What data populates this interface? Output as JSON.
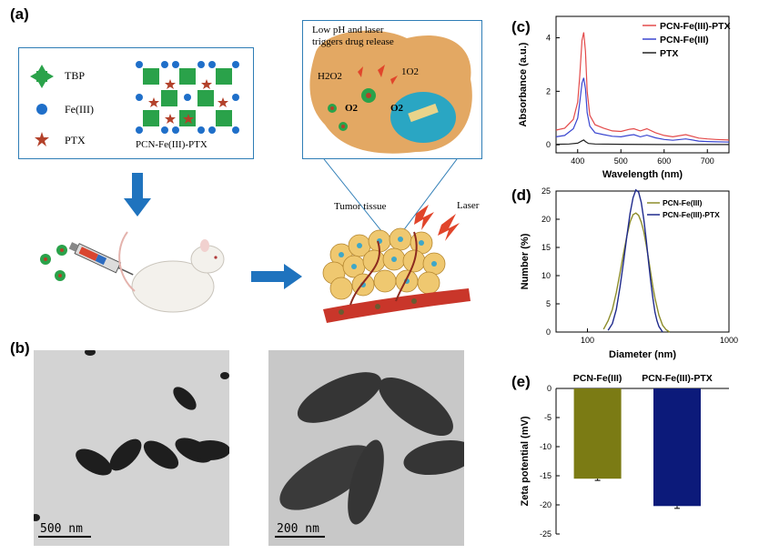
{
  "panels": {
    "a": {
      "label": "(a)"
    },
    "b": {
      "label": "(b)"
    },
    "c": {
      "label": "(c)"
    },
    "d": {
      "label": "(d)"
    },
    "e": {
      "label": "(e)"
    }
  },
  "schematic": {
    "legend": {
      "tbp": "TBP",
      "fe": "Fe(III)",
      "ptx": "PTX"
    },
    "mof_label": "PCN-Fe(III)-PTX",
    "release_title_line1": "Low pH and laser",
    "release_title_line2": "triggers drug release",
    "h2o2": "H2O2",
    "singlet_o2": "1O2",
    "o2_left": "O2",
    "o2_right": "O2",
    "tumor_tissue": "Tumor tissue",
    "laser": "Laser"
  },
  "tem": {
    "left_scale": "500 nm",
    "right_scale": "200 nm"
  },
  "colors": {
    "blue_arrow": "#1f73be",
    "box_border": "#2e7db6",
    "pcn_fe_ptx": "#e34a4a",
    "pcn_fe": "#3a46d0",
    "ptx": "#222222",
    "d_pcn_fe": "#8c8c2a",
    "d_pcn_fe_ptx": "#1f2a8c",
    "bar_olive": "#7b7b14",
    "bar_navy": "#0c1a7a"
  },
  "chart_data": [
    {
      "panel": "c",
      "type": "line",
      "xlabel": "Wavelength (nm)",
      "ylabel": "Absorbance (a.u.)",
      "xlim": [
        350,
        750
      ],
      "ylim": [
        -0.3,
        4.8
      ],
      "xticks": [
        400,
        500,
        600,
        700
      ],
      "yticks": [
        0,
        2,
        4
      ],
      "legend_placement": "top-right",
      "series": [
        {
          "name": "PCN-Fe(III)-PTX",
          "x": [
            350,
            370,
            390,
            400,
            405,
            410,
            414,
            418,
            422,
            428,
            440,
            460,
            480,
            500,
            520,
            530,
            545,
            560,
            580,
            600,
            620,
            650,
            680,
            700,
            720,
            750
          ],
          "values": [
            0.55,
            0.62,
            0.95,
            1.6,
            2.6,
            3.9,
            4.2,
            3.5,
            2.0,
            1.1,
            0.75,
            0.62,
            0.52,
            0.5,
            0.58,
            0.6,
            0.52,
            0.6,
            0.45,
            0.35,
            0.3,
            0.38,
            0.25,
            0.22,
            0.2,
            0.18
          ]
        },
        {
          "name": "PCN-Fe(III)",
          "x": [
            350,
            370,
            390,
            400,
            405,
            410,
            414,
            418,
            422,
            428,
            440,
            460,
            480,
            500,
            520,
            530,
            545,
            560,
            580,
            600,
            620,
            650,
            680,
            700,
            720,
            750
          ],
          "values": [
            0.3,
            0.35,
            0.6,
            1.0,
            1.6,
            2.3,
            2.5,
            2.1,
            1.2,
            0.7,
            0.45,
            0.38,
            0.32,
            0.3,
            0.36,
            0.38,
            0.3,
            0.36,
            0.26,
            0.2,
            0.17,
            0.22,
            0.14,
            0.12,
            0.11,
            0.1
          ]
        },
        {
          "name": "PTX",
          "x": [
            350,
            380,
            400,
            410,
            414,
            418,
            425,
            440,
            500,
            600,
            700,
            750
          ],
          "values": [
            0.02,
            0.03,
            0.06,
            0.15,
            0.18,
            0.12,
            0.05,
            0.03,
            0.02,
            0.01,
            0.01,
            0.01
          ]
        }
      ]
    },
    {
      "panel": "d",
      "type": "line",
      "xlabel": "Diameter (nm)",
      "ylabel": "Number (%)",
      "xscale": "log",
      "xlim": [
        60,
        1000
      ],
      "ylim": [
        0,
        25
      ],
      "xticks": [
        100,
        1000
      ],
      "yticks": [
        0,
        5,
        10,
        15,
        20,
        25
      ],
      "legend_placement": "top-right",
      "series": [
        {
          "name": "PCN-Fe(III)",
          "x": [
            130,
            140,
            150,
            160,
            170,
            180,
            190,
            200,
            210,
            220,
            230,
            240,
            250,
            260,
            270,
            280,
            290,
            300,
            320,
            340,
            360,
            380
          ],
          "values": [
            0.5,
            2,
            4,
            7,
            10.5,
            14,
            17,
            19.5,
            20.8,
            21.1,
            20.7,
            19.5,
            17.8,
            15.5,
            13,
            10.5,
            8,
            6,
            3,
            1.2,
            0.4,
            0
          ]
        },
        {
          "name": "PCN-Fe(III)-PTX",
          "x": [
            140,
            150,
            160,
            170,
            180,
            190,
            200,
            210,
            220,
            230,
            240,
            250,
            260,
            270,
            280,
            290,
            300,
            310,
            320,
            340
          ],
          "values": [
            0.3,
            1.5,
            4,
            8,
            12.5,
            17,
            21,
            23.8,
            25.2,
            24.8,
            23,
            20,
            16.5,
            12.5,
            9,
            6,
            3.5,
            2,
            1,
            0
          ]
        }
      ]
    },
    {
      "panel": "e",
      "type": "bar",
      "ylabel": "Zeta potential (mV)",
      "categories": [
        "PCN-Fe(III)",
        "PCN-Fe(III)-PTX"
      ],
      "values": [
        -15.5,
        -20.2
      ],
      "errors": [
        0.3,
        0.4
      ],
      "ylim": [
        -25,
        0
      ],
      "yticks": [
        0,
        -5,
        -10,
        -15,
        -20,
        -25
      ]
    }
  ]
}
